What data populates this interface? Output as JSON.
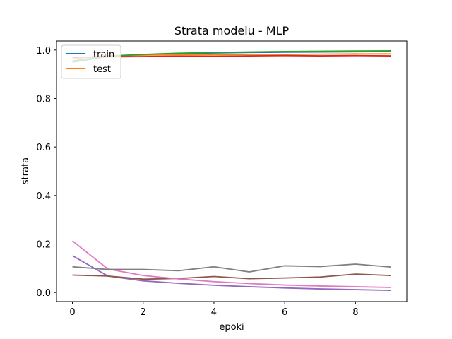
{
  "chart_data": {
    "type": "line",
    "title": "Strata modelu - MLP",
    "xlabel": "epoki",
    "ylabel": "strata",
    "xlim": [
      -0.45,
      9.45
    ],
    "ylim": [
      -0.0373,
      1.0373
    ],
    "xticks": [
      0,
      2,
      4,
      6,
      8
    ],
    "yticks": [
      0.0,
      0.2,
      0.4,
      0.6,
      0.8,
      1.0
    ],
    "legend_position": "top-left",
    "legend": [
      "train",
      "test"
    ],
    "x": [
      0,
      1,
      2,
      3,
      4,
      5,
      6,
      7,
      8,
      9
    ],
    "series": [
      {
        "name": "train",
        "color": "#1f77b4",
        "values": [
          0.95,
          0.974,
          0.98,
          0.985,
          0.988,
          0.99,
          0.991,
          0.992,
          0.993,
          0.994
        ]
      },
      {
        "name": "test",
        "color": "#ff7f0e",
        "values": [
          0.965,
          0.977,
          0.979,
          0.981,
          0.98,
          0.982,
          0.982,
          0.983,
          0.984,
          0.984
        ]
      },
      {
        "color": "#2ca02c",
        "values": [
          0.955,
          0.975,
          0.982,
          0.987,
          0.99,
          0.992,
          0.994,
          0.995,
          0.996,
          0.997
        ]
      },
      {
        "color": "#d62728",
        "values": [
          0.97,
          0.972,
          0.973,
          0.975,
          0.974,
          0.976,
          0.977,
          0.976,
          0.977,
          0.976
        ]
      },
      {
        "color": "#9467bd",
        "values": [
          0.152,
          0.068,
          0.048,
          0.038,
          0.03,
          0.024,
          0.019,
          0.015,
          0.012,
          0.009
        ]
      },
      {
        "color": "#8c564b",
        "values": [
          0.072,
          0.068,
          0.055,
          0.058,
          0.066,
          0.057,
          0.06,
          0.064,
          0.076,
          0.07
        ]
      },
      {
        "color": "#e377c2",
        "values": [
          0.213,
          0.097,
          0.07,
          0.056,
          0.045,
          0.037,
          0.031,
          0.027,
          0.024,
          0.021
        ]
      },
      {
        "color": "#7f7f7f",
        "values": [
          0.106,
          0.095,
          0.095,
          0.09,
          0.106,
          0.085,
          0.11,
          0.107,
          0.117,
          0.105
        ]
      }
    ]
  }
}
